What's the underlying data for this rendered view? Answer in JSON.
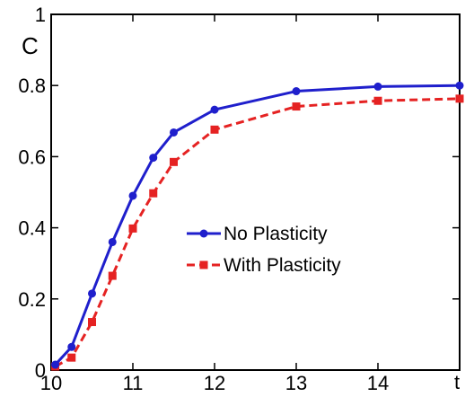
{
  "chart_data": {
    "type": "line",
    "title": "",
    "xlabel": "t",
    "ylabel": "C",
    "xlim": [
      10,
      15
    ],
    "ylim": [
      0,
      1
    ],
    "x_ticks": [
      10,
      11,
      12,
      13,
      14
    ],
    "x_tick_labels": [
      "10",
      "11",
      "12",
      "13",
      "14"
    ],
    "y_ticks": [
      0,
      0.2,
      0.4,
      0.6,
      0.8,
      1
    ],
    "y_tick_labels": [
      "0",
      "0.2",
      "0.4",
      "0.6",
      "0.8",
      "1"
    ],
    "grid": false,
    "legend_position": "center-right",
    "series": [
      {
        "name": "No Plasticity",
        "color": "#1f1fcc",
        "style": "solid",
        "marker": "circle",
        "x": [
          10.05,
          10.25,
          10.5,
          10.75,
          11.0,
          11.25,
          11.5,
          12.0,
          13.0,
          14.0,
          15.0
        ],
        "y": [
          0.015,
          0.065,
          0.215,
          0.36,
          0.49,
          0.597,
          0.668,
          0.732,
          0.784,
          0.797,
          0.8
        ]
      },
      {
        "name": "With Plasticity",
        "color": "#e52222",
        "style": "dashed",
        "marker": "square",
        "x": [
          10.05,
          10.25,
          10.5,
          10.75,
          11.0,
          11.25,
          11.5,
          12.0,
          13.0,
          14.0,
          15.0
        ],
        "y": [
          0.01,
          0.035,
          0.135,
          0.265,
          0.398,
          0.497,
          0.585,
          0.676,
          0.741,
          0.757,
          0.763
        ]
      }
    ]
  }
}
